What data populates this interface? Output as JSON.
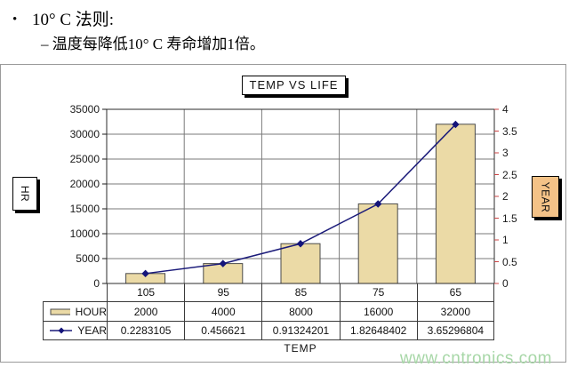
{
  "slide": {
    "bullet_marker": "•",
    "bullet1": "10° C 法则:",
    "bullet2": "– 温度每降低10° C 寿命增加1倍。"
  },
  "chart": {
    "title": "TEMP VS LIFE",
    "left_axis_title": "HR",
    "right_axis_title": "YEAR",
    "x_axis_title": "TEMP"
  },
  "chart_data": {
    "type": "bar",
    "subtype": "bar-and-line-dual-axis",
    "title": "TEMP VS LIFE",
    "xlabel": "TEMP",
    "categories": [
      "105",
      "95",
      "85",
      "75",
      "65"
    ],
    "series": [
      {
        "name": "HOUR",
        "type": "bar",
        "axis": "left",
        "values": [
          2000,
          4000,
          8000,
          16000,
          32000
        ]
      },
      {
        "name": "YEAR",
        "type": "line",
        "axis": "right",
        "values": [
          0.2283105,
          0.456621,
          0.91324201,
          1.82648402,
          3.65296804
        ]
      }
    ],
    "left_axis": {
      "label": "HR",
      "ylim": [
        0,
        35000
      ],
      "step": 5000,
      "ticks": [
        "35000",
        "30000",
        "25000",
        "20000",
        "15000",
        "10000",
        "5000",
        "0"
      ]
    },
    "right_axis": {
      "label": "YEAR",
      "ylim": [
        0,
        4
      ],
      "step": 0.5,
      "ticks": [
        "4",
        "3.5",
        "3",
        "2.5",
        "2",
        "1.5",
        "1",
        "0.5",
        "0"
      ]
    },
    "grid": true,
    "legend_position": "data-table-left"
  },
  "table": {
    "rows": [
      {
        "label": "HOUR",
        "swatch": "bar",
        "values": [
          "2000",
          "4000",
          "8000",
          "16000",
          "32000"
        ]
      },
      {
        "label": "YEAR",
        "swatch": "line",
        "values": [
          "0.2283105",
          "0.456621",
          "0.91324201",
          "1.82648402",
          "3.65296804"
        ]
      }
    ]
  },
  "watermark": "www.cntronics.com",
  "colors": {
    "bar_fill": "#EBDAA6",
    "bar_border": "#4a4a4a",
    "line": "#1b1b7a",
    "marker": "#14147a",
    "grid": "#7a7a7a",
    "plot_border": "#2b2b2b",
    "right_tick": "#cc4444",
    "table_border": "#3a3a3a",
    "year_box_fill": "#F4C287",
    "watermark": "#a7d7a7"
  }
}
